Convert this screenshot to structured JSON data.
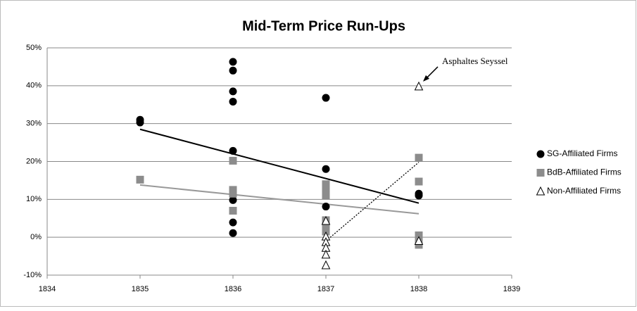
{
  "chart_data": {
    "type": "scatter",
    "title": "Mid-Term Price Run-Ups",
    "xlim": [
      1834,
      1839
    ],
    "xticks": [
      1834,
      1835,
      1836,
      1837,
      1838,
      1839
    ],
    "ylim": [
      -10,
      50
    ],
    "yticks": [
      {
        "value": -10,
        "label": "-10%"
      },
      {
        "value": 0,
        "label": "0%"
      },
      {
        "value": 10,
        "label": "10%"
      },
      {
        "value": 20,
        "label": "20%"
      },
      {
        "value": 30,
        "label": "30%"
      },
      {
        "value": 40,
        "label": "40%"
      },
      {
        "value": 50,
        "label": "50%"
      }
    ],
    "grid": true,
    "legend": "right",
    "series": [
      {
        "name": "SG-Affiliated Firms",
        "color": "#000000",
        "marker": "circle",
        "x": [
          1835,
          1835,
          1836,
          1836,
          1836,
          1836,
          1836,
          1836,
          1836,
          1836,
          1837,
          1837,
          1837,
          1838,
          1838
        ],
        "values": [
          31,
          30.3,
          46.3,
          44,
          38.5,
          35.8,
          22.8,
          9.8,
          3.9,
          1.1,
          36.8,
          18,
          8.1,
          11.5,
          11
        ]
      },
      {
        "name": "BdB-Affiliated Firms",
        "color": "#8c8c8c",
        "marker": "square",
        "x": [
          1835,
          1836,
          1836,
          1836,
          1836,
          1837,
          1837,
          1837,
          1837,
          1837,
          1837,
          1837,
          1838,
          1838,
          1838,
          1838,
          1838
        ],
        "values": [
          15.2,
          20.2,
          12.5,
          11.5,
          7,
          14,
          13,
          12,
          11,
          4.5,
          2.5,
          1.5,
          21,
          14.7,
          0.5,
          -1.5,
          -2
        ]
      },
      {
        "name": "Non-Affiliated Firms",
        "color": "#000000",
        "marker": "triangle",
        "x": [
          1837,
          1837,
          1837,
          1837,
          1837,
          1837,
          1838,
          1838
        ],
        "values": [
          4.3,
          0.2,
          -1.3,
          -2.8,
          -4.6,
          -7.4,
          39.8,
          -1
        ]
      }
    ],
    "trendlines": [
      {
        "color": "#000000",
        "dash": false,
        "x": [
          1835,
          1838
        ],
        "values": [
          28.5,
          9
        ]
      },
      {
        "color": "#999999",
        "dash": false,
        "x": [
          1835,
          1838
        ],
        "values": [
          13.8,
          6.2
        ]
      },
      {
        "color": "#000000",
        "dash": true,
        "x": [
          1837,
          1838
        ],
        "values": [
          -1,
          19.8
        ]
      }
    ],
    "annotation": {
      "text": "Asphaltes Seyssel",
      "x": 1838,
      "y": 39.8
    }
  }
}
